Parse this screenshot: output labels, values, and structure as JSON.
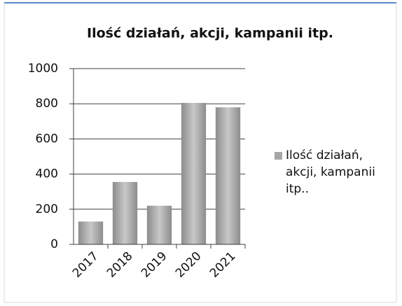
{
  "chart_data": {
    "type": "bar",
    "title": "Ilość działań, akcji, kampanii itp.",
    "categories": [
      "2017",
      "2018",
      "2019",
      "2020",
      "2021"
    ],
    "series": [
      {
        "name": "Ilość działań, akcji, kampanii itp..",
        "color": "#a6a6a6",
        "values": [
          130,
          355,
          220,
          805,
          780
        ]
      }
    ],
    "ylim": [
      0,
      1000
    ],
    "yticks": [
      0,
      200,
      400,
      600,
      800,
      1000
    ],
    "grid": true,
    "legend": "right"
  }
}
